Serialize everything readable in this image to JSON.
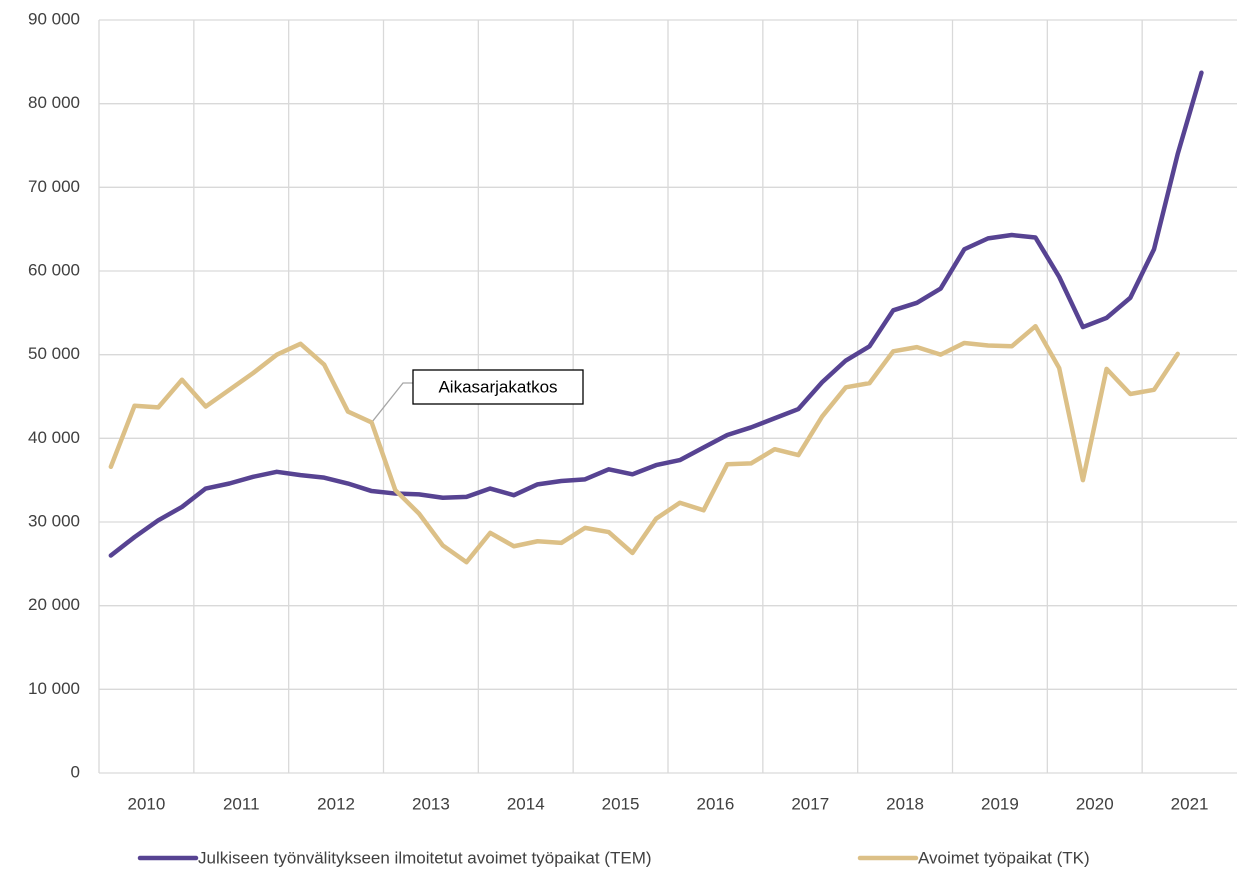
{
  "chart_data": {
    "type": "line",
    "categories": [
      "2010",
      null,
      null,
      null,
      "2011",
      null,
      null,
      null,
      "2012",
      null,
      null,
      null,
      "2013",
      null,
      null,
      null,
      "2014",
      null,
      null,
      null,
      "2015",
      null,
      null,
      null,
      "2016",
      null,
      null,
      null,
      "2017",
      null,
      null,
      null,
      "2018",
      null,
      null,
      null,
      "2019",
      null,
      null,
      null,
      "2020",
      null,
      null,
      null,
      "2021",
      null,
      null,
      null
    ],
    "series": [
      {
        "name": "Julkiseen työnvälitykseen ilmoitetut avoimet työpaikat (TEM)",
        "color": "#574392",
        "values": [
          26000,
          28200,
          30200,
          31800,
          34000,
          34600,
          35400,
          36000,
          35600,
          35300,
          34600,
          33700,
          33400,
          33300,
          32900,
          33000,
          34000,
          33200,
          34500,
          34900,
          35100,
          36300,
          35700,
          36800,
          37400,
          38900,
          40400,
          41300,
          42400,
          43500,
          46700,
          49300,
          51000,
          55300,
          56200,
          57900,
          62600,
          63900,
          64300,
          64000,
          59300,
          53300,
          54400,
          56800,
          62600,
          74000,
          83700,
          null
        ]
      },
      {
        "name": "Avoimet työpaikat (TK)",
        "color": "#dcc087",
        "values": [
          36600,
          43900,
          43700,
          47000,
          43800,
          45800,
          47800,
          50000,
          51300,
          48800,
          43200,
          41900,
          33800,
          31000,
          27200,
          25200,
          28700,
          27100,
          27700,
          27500,
          29300,
          28800,
          26300,
          30400,
          32300,
          31400,
          36900,
          37000,
          38700,
          38000,
          42600,
          46100,
          46600,
          50400,
          50900,
          50000,
          51400,
          51100,
          51000,
          53400,
          48400,
          35000,
          48300,
          45300,
          45800,
          50100,
          null,
          null
        ]
      }
    ],
    "ylim": [
      0,
      90000
    ],
    "yticks": [
      {
        "value": 0,
        "label": "0"
      },
      {
        "value": 10000,
        "label": "10 000"
      },
      {
        "value": 20000,
        "label": "20 000"
      },
      {
        "value": 30000,
        "label": "30 000"
      },
      {
        "value": 40000,
        "label": "40 000"
      },
      {
        "value": 50000,
        "label": "50 000"
      },
      {
        "value": 60000,
        "label": "60 000"
      },
      {
        "value": 70000,
        "label": "70 000"
      },
      {
        "value": 80000,
        "label": "80 000"
      },
      {
        "value": 90000,
        "label": "90 000"
      }
    ],
    "grid": true,
    "annotation": "Aikasarjakatkos",
    "legend": "bottom"
  }
}
